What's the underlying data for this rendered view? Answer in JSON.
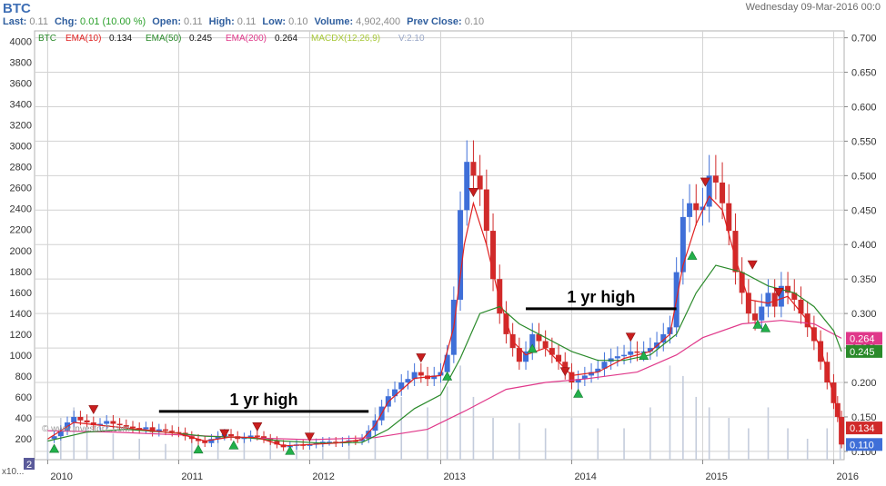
{
  "header": {
    "symbol": "BTC",
    "date": "Wednesday 09-Mar-2016 00:0",
    "quote": [
      {
        "label": "Last:",
        "value": "0.11",
        "up": false
      },
      {
        "label": "Chg:",
        "value": "0.01 (10.00 %)",
        "up": true
      },
      {
        "label": "Open:",
        "value": "0.11",
        "up": false
      },
      {
        "label": "High:",
        "value": "0.11",
        "up": false
      },
      {
        "label": "Low:",
        "value": "0.10",
        "up": false
      },
      {
        "label": "Volume:",
        "value": "4,902,400",
        "up": false
      },
      {
        "label": "Prev Close:",
        "value": "0.10",
        "up": false
      }
    ]
  },
  "colors": {
    "up": "#3f6fd8",
    "down": "#d02a2a",
    "ema10": "#e02020",
    "ema50": "#2a8a2a",
    "ema200": "#e0388a",
    "macd": "#a8c838",
    "grid": "#d2d2d2",
    "volume": "#c4ccdc",
    "buy": "#22b04a",
    "sell": "#c81e1e"
  },
  "chart_data": {
    "type": "candlestick",
    "legend": [
      {
        "name": "BTC",
        "value": "",
        "color": "#2a8a2a"
      },
      {
        "name": "EMA(10)",
        "value": "0.134",
        "color": "#e02020"
      },
      {
        "name": "EMA(50)",
        "value": "0.245",
        "color": "#2a8a2a"
      },
      {
        "name": "EMA(200)",
        "value": "0.264",
        "color": "#e0388a"
      },
      {
        "name": "MACDX(12,26,9)",
        "value": "",
        "color": "#a8c838"
      },
      {
        "name": "V:2.10",
        "value": "",
        "color": "#9aa8c8"
      }
    ],
    "x_labels": [
      {
        "label": "2010",
        "x": 2010.0
      },
      {
        "label": "2011",
        "x": 2011.0
      },
      {
        "label": "2012",
        "x": 2012.0
      },
      {
        "label": "2013",
        "x": 2013.0
      },
      {
        "label": "2014",
        "x": 2014.0
      },
      {
        "label": "2015",
        "x": 2015.0
      },
      {
        "label": "2016",
        "x": 2016.0
      }
    ],
    "x_range": [
      2009.9,
      2016.08
    ],
    "volume_axis": {
      "range": [
        0,
        4100
      ],
      "ticks": [
        200,
        400,
        600,
        800,
        1000,
        1200,
        1400,
        1600,
        1800,
        2000,
        2200,
        2400,
        2600,
        2800,
        3000,
        3200,
        3400,
        3600,
        3800,
        4000
      ],
      "unit_label": "x10..."
    },
    "price_axis": {
      "range": [
        0.088,
        0.71
      ],
      "ticks": [
        "0.100",
        "0.150",
        "0.200",
        "0.250",
        "0.300",
        "0.350",
        "0.400",
        "0.450",
        "0.500",
        "0.550",
        "0.600",
        "0.650",
        "0.700"
      ]
    },
    "value_tags": [
      {
        "value": 0.264,
        "label": "0.264",
        "color": "#e0388a"
      },
      {
        "value": 0.245,
        "label": "0.245",
        "color": "#2a8a2a"
      },
      {
        "value": 0.134,
        "label": "0.134",
        "color": "#d02a2a"
      },
      {
        "value": 0.11,
        "label": "0.110",
        "color": "#3f6fd8"
      }
    ],
    "annotations": [
      {
        "text": "1 yr high",
        "from": 2010.85,
        "to": 2012.45,
        "price": 0.158
      },
      {
        "text": "1 yr high",
        "from": 2013.65,
        "to": 2014.8,
        "price": 0.307
      }
    ],
    "watermark": "© www.investorZ.com",
    "panel_badge": "2",
    "close": [
      [
        2010.0,
        0.118
      ],
      [
        2010.05,
        0.122
      ],
      [
        2010.1,
        0.13
      ],
      [
        2010.15,
        0.142
      ],
      [
        2010.2,
        0.15
      ],
      [
        2010.25,
        0.145
      ],
      [
        2010.3,
        0.142
      ],
      [
        2010.35,
        0.138
      ],
      [
        2010.4,
        0.14
      ],
      [
        2010.45,
        0.144
      ],
      [
        2010.5,
        0.14
      ],
      [
        2010.55,
        0.138
      ],
      [
        2010.6,
        0.136
      ],
      [
        2010.65,
        0.134
      ],
      [
        2010.7,
        0.132
      ],
      [
        2010.75,
        0.135
      ],
      [
        2010.8,
        0.128
      ],
      [
        2010.85,
        0.132
      ],
      [
        2010.9,
        0.13
      ],
      [
        2010.95,
        0.128
      ],
      [
        2011.0,
        0.127
      ],
      [
        2011.05,
        0.122
      ],
      [
        2011.1,
        0.118
      ],
      [
        2011.15,
        0.115
      ],
      [
        2011.2,
        0.112
      ],
      [
        2011.25,
        0.118
      ],
      [
        2011.3,
        0.122
      ],
      [
        2011.35,
        0.125
      ],
      [
        2011.4,
        0.122
      ],
      [
        2011.45,
        0.118
      ],
      [
        2011.5,
        0.12
      ],
      [
        2011.55,
        0.123
      ],
      [
        2011.6,
        0.122
      ],
      [
        2011.65,
        0.118
      ],
      [
        2011.7,
        0.115
      ],
      [
        2011.75,
        0.11
      ],
      [
        2011.8,
        0.106
      ],
      [
        2011.85,
        0.108
      ],
      [
        2011.9,
        0.11
      ],
      [
        2011.95,
        0.108
      ],
      [
        2012.0,
        0.11
      ],
      [
        2012.05,
        0.112
      ],
      [
        2012.1,
        0.114
      ],
      [
        2012.15,
        0.114
      ],
      [
        2012.2,
        0.112
      ],
      [
        2012.25,
        0.114
      ],
      [
        2012.3,
        0.116
      ],
      [
        2012.35,
        0.115
      ],
      [
        2012.4,
        0.118
      ],
      [
        2012.45,
        0.13
      ],
      [
        2012.5,
        0.145
      ],
      [
        2012.55,
        0.165
      ],
      [
        2012.6,
        0.18
      ],
      [
        2012.65,
        0.19
      ],
      [
        2012.7,
        0.2
      ],
      [
        2012.75,
        0.205
      ],
      [
        2012.8,
        0.215
      ],
      [
        2012.85,
        0.21
      ],
      [
        2012.9,
        0.205
      ],
      [
        2012.95,
        0.21
      ],
      [
        2013.0,
        0.215
      ],
      [
        2013.05,
        0.24
      ],
      [
        2013.1,
        0.32
      ],
      [
        2013.15,
        0.45
      ],
      [
        2013.2,
        0.52
      ],
      [
        2013.25,
        0.5
      ],
      [
        2013.3,
        0.48
      ],
      [
        2013.35,
        0.42
      ],
      [
        2013.4,
        0.35
      ],
      [
        2013.45,
        0.3
      ],
      [
        2013.5,
        0.27
      ],
      [
        2013.55,
        0.25
      ],
      [
        2013.6,
        0.23
      ],
      [
        2013.65,
        0.245
      ],
      [
        2013.7,
        0.27
      ],
      [
        2013.75,
        0.26
      ],
      [
        2013.8,
        0.25
      ],
      [
        2013.85,
        0.24
      ],
      [
        2013.9,
        0.23
      ],
      [
        2013.95,
        0.215
      ],
      [
        2014.0,
        0.2
      ],
      [
        2014.05,
        0.205
      ],
      [
        2014.1,
        0.21
      ],
      [
        2014.15,
        0.215
      ],
      [
        2014.2,
        0.22
      ],
      [
        2014.25,
        0.23
      ],
      [
        2014.3,
        0.235
      ],
      [
        2014.35,
        0.238
      ],
      [
        2014.4,
        0.24
      ],
      [
        2014.45,
        0.245
      ],
      [
        2014.5,
        0.243
      ],
      [
        2014.55,
        0.245
      ],
      [
        2014.6,
        0.25
      ],
      [
        2014.65,
        0.258
      ],
      [
        2014.7,
        0.27
      ],
      [
        2014.75,
        0.28
      ],
      [
        2014.8,
        0.36
      ],
      [
        2014.85,
        0.44
      ],
      [
        2014.9,
        0.46
      ],
      [
        2014.95,
        0.45
      ],
      [
        2015.0,
        0.455
      ],
      [
        2015.05,
        0.5
      ],
      [
        2015.1,
        0.49
      ],
      [
        2015.15,
        0.46
      ],
      [
        2015.2,
        0.42
      ],
      [
        2015.25,
        0.36
      ],
      [
        2015.3,
        0.33
      ],
      [
        2015.35,
        0.3
      ],
      [
        2015.4,
        0.29
      ],
      [
        2015.45,
        0.31
      ],
      [
        2015.5,
        0.33
      ],
      [
        2015.55,
        0.31
      ],
      [
        2015.6,
        0.34
      ],
      [
        2015.65,
        0.33
      ],
      [
        2015.7,
        0.32
      ],
      [
        2015.75,
        0.3
      ],
      [
        2015.8,
        0.28
      ],
      [
        2015.85,
        0.26
      ],
      [
        2015.9,
        0.23
      ],
      [
        2015.95,
        0.2
      ],
      [
        2016.0,
        0.17
      ],
      [
        2016.03,
        0.15
      ],
      [
        2016.06,
        0.11
      ]
    ],
    "ema10": [
      [
        2010.0,
        0.118
      ],
      [
        2010.2,
        0.142
      ],
      [
        2010.4,
        0.138
      ],
      [
        2010.6,
        0.134
      ],
      [
        2010.8,
        0.13
      ],
      [
        2011.0,
        0.126
      ],
      [
        2011.2,
        0.115
      ],
      [
        2011.4,
        0.121
      ],
      [
        2011.6,
        0.12
      ],
      [
        2011.8,
        0.108
      ],
      [
        2012.0,
        0.11
      ],
      [
        2012.2,
        0.112
      ],
      [
        2012.4,
        0.117
      ],
      [
        2012.5,
        0.138
      ],
      [
        2012.6,
        0.172
      ],
      [
        2012.8,
        0.206
      ],
      [
        2013.0,
        0.21
      ],
      [
        2013.1,
        0.28
      ],
      [
        2013.18,
        0.4
      ],
      [
        2013.25,
        0.46
      ],
      [
        2013.35,
        0.4
      ],
      [
        2013.45,
        0.32
      ],
      [
        2013.55,
        0.26
      ],
      [
        2013.65,
        0.24
      ],
      [
        2013.8,
        0.25
      ],
      [
        2014.0,
        0.21
      ],
      [
        2014.2,
        0.215
      ],
      [
        2014.4,
        0.235
      ],
      [
        2014.6,
        0.245
      ],
      [
        2014.75,
        0.27
      ],
      [
        2014.85,
        0.37
      ],
      [
        2014.95,
        0.43
      ],
      [
        2015.05,
        0.47
      ],
      [
        2015.15,
        0.45
      ],
      [
        2015.25,
        0.38
      ],
      [
        2015.35,
        0.32
      ],
      [
        2015.5,
        0.315
      ],
      [
        2015.65,
        0.325
      ],
      [
        2015.8,
        0.29
      ],
      [
        2015.9,
        0.25
      ],
      [
        2016.0,
        0.18
      ],
      [
        2016.06,
        0.134
      ]
    ],
    "ema50": [
      [
        2010.0,
        0.115
      ],
      [
        2010.3,
        0.128
      ],
      [
        2010.6,
        0.132
      ],
      [
        2010.9,
        0.128
      ],
      [
        2011.2,
        0.122
      ],
      [
        2011.5,
        0.12
      ],
      [
        2011.8,
        0.115
      ],
      [
        2012.1,
        0.112
      ],
      [
        2012.4,
        0.113
      ],
      [
        2012.6,
        0.132
      ],
      [
        2012.8,
        0.162
      ],
      [
        2013.0,
        0.182
      ],
      [
        2013.15,
        0.235
      ],
      [
        2013.3,
        0.3
      ],
      [
        2013.45,
        0.31
      ],
      [
        2013.6,
        0.285
      ],
      [
        2013.8,
        0.265
      ],
      [
        2014.0,
        0.245
      ],
      [
        2014.2,
        0.232
      ],
      [
        2014.4,
        0.232
      ],
      [
        2014.6,
        0.24
      ],
      [
        2014.8,
        0.27
      ],
      [
        2014.95,
        0.33
      ],
      [
        2015.1,
        0.37
      ],
      [
        2015.3,
        0.36
      ],
      [
        2015.5,
        0.34
      ],
      [
        2015.7,
        0.33
      ],
      [
        2015.85,
        0.31
      ],
      [
        2016.0,
        0.275
      ],
      [
        2016.06,
        0.245
      ]
    ],
    "ema200": [
      [
        2010.0,
        0.13
      ],
      [
        2010.5,
        0.128
      ],
      [
        2011.0,
        0.124
      ],
      [
        2011.5,
        0.12
      ],
      [
        2012.0,
        0.117
      ],
      [
        2012.5,
        0.12
      ],
      [
        2012.9,
        0.132
      ],
      [
        2013.2,
        0.16
      ],
      [
        2013.5,
        0.19
      ],
      [
        2013.8,
        0.2
      ],
      [
        2014.1,
        0.205
      ],
      [
        2014.5,
        0.215
      ],
      [
        2014.8,
        0.24
      ],
      [
        2015.0,
        0.265
      ],
      [
        2015.3,
        0.285
      ],
      [
        2015.6,
        0.29
      ],
      [
        2015.85,
        0.285
      ],
      [
        2016.06,
        0.264
      ]
    ],
    "volume": [
      [
        2010.0,
        200
      ],
      [
        2010.1,
        400
      ],
      [
        2010.2,
        500
      ],
      [
        2010.3,
        300
      ],
      [
        2010.5,
        250
      ],
      [
        2010.7,
        200
      ],
      [
        2010.9,
        150
      ],
      [
        2011.1,
        200
      ],
      [
        2011.3,
        250
      ],
      [
        2011.5,
        200
      ],
      [
        2011.7,
        180
      ],
      [
        2011.9,
        150
      ],
      [
        2012.1,
        150
      ],
      [
        2012.3,
        170
      ],
      [
        2012.5,
        500
      ],
      [
        2012.7,
        600
      ],
      [
        2012.9,
        500
      ],
      [
        2013.05,
        700
      ],
      [
        2013.15,
        900
      ],
      [
        2013.25,
        600
      ],
      [
        2013.4,
        400
      ],
      [
        2013.6,
        350
      ],
      [
        2013.8,
        300
      ],
      [
        2014.0,
        400
      ],
      [
        2014.2,
        300
      ],
      [
        2014.4,
        300
      ],
      [
        2014.6,
        500
      ],
      [
        2014.75,
        900
      ],
      [
        2014.85,
        800
      ],
      [
        2014.95,
        600
      ],
      [
        2015.05,
        500
      ],
      [
        2015.2,
        400
      ],
      [
        2015.35,
        300
      ],
      [
        2015.5,
        500
      ],
      [
        2015.65,
        300
      ],
      [
        2015.8,
        200
      ],
      [
        2015.95,
        300
      ],
      [
        2016.05,
        200
      ]
    ],
    "buy_signals": [
      [
        2010.05,
        0.105
      ],
      [
        2011.15,
        0.104
      ],
      [
        2011.42,
        0.11
      ],
      [
        2011.85,
        0.102
      ],
      [
        2013.05,
        0.21
      ],
      [
        2013.7,
        0.25
      ],
      [
        2014.05,
        0.185
      ],
      [
        2014.55,
        0.24
      ],
      [
        2014.92,
        0.385
      ],
      [
        2015.42,
        0.285
      ],
      [
        2015.48,
        0.28
      ]
    ],
    "sell_signals": [
      [
        2010.35,
        0.16
      ],
      [
        2011.35,
        0.125
      ],
      [
        2011.6,
        0.135
      ],
      [
        2012.0,
        0.12
      ],
      [
        2012.85,
        0.235
      ],
      [
        2013.25,
        0.475
      ],
      [
        2013.95,
        0.215
      ],
      [
        2014.45,
        0.265
      ],
      [
        2015.02,
        0.49
      ],
      [
        2015.38,
        0.37
      ],
      [
        2015.58,
        0.33
      ]
    ]
  }
}
